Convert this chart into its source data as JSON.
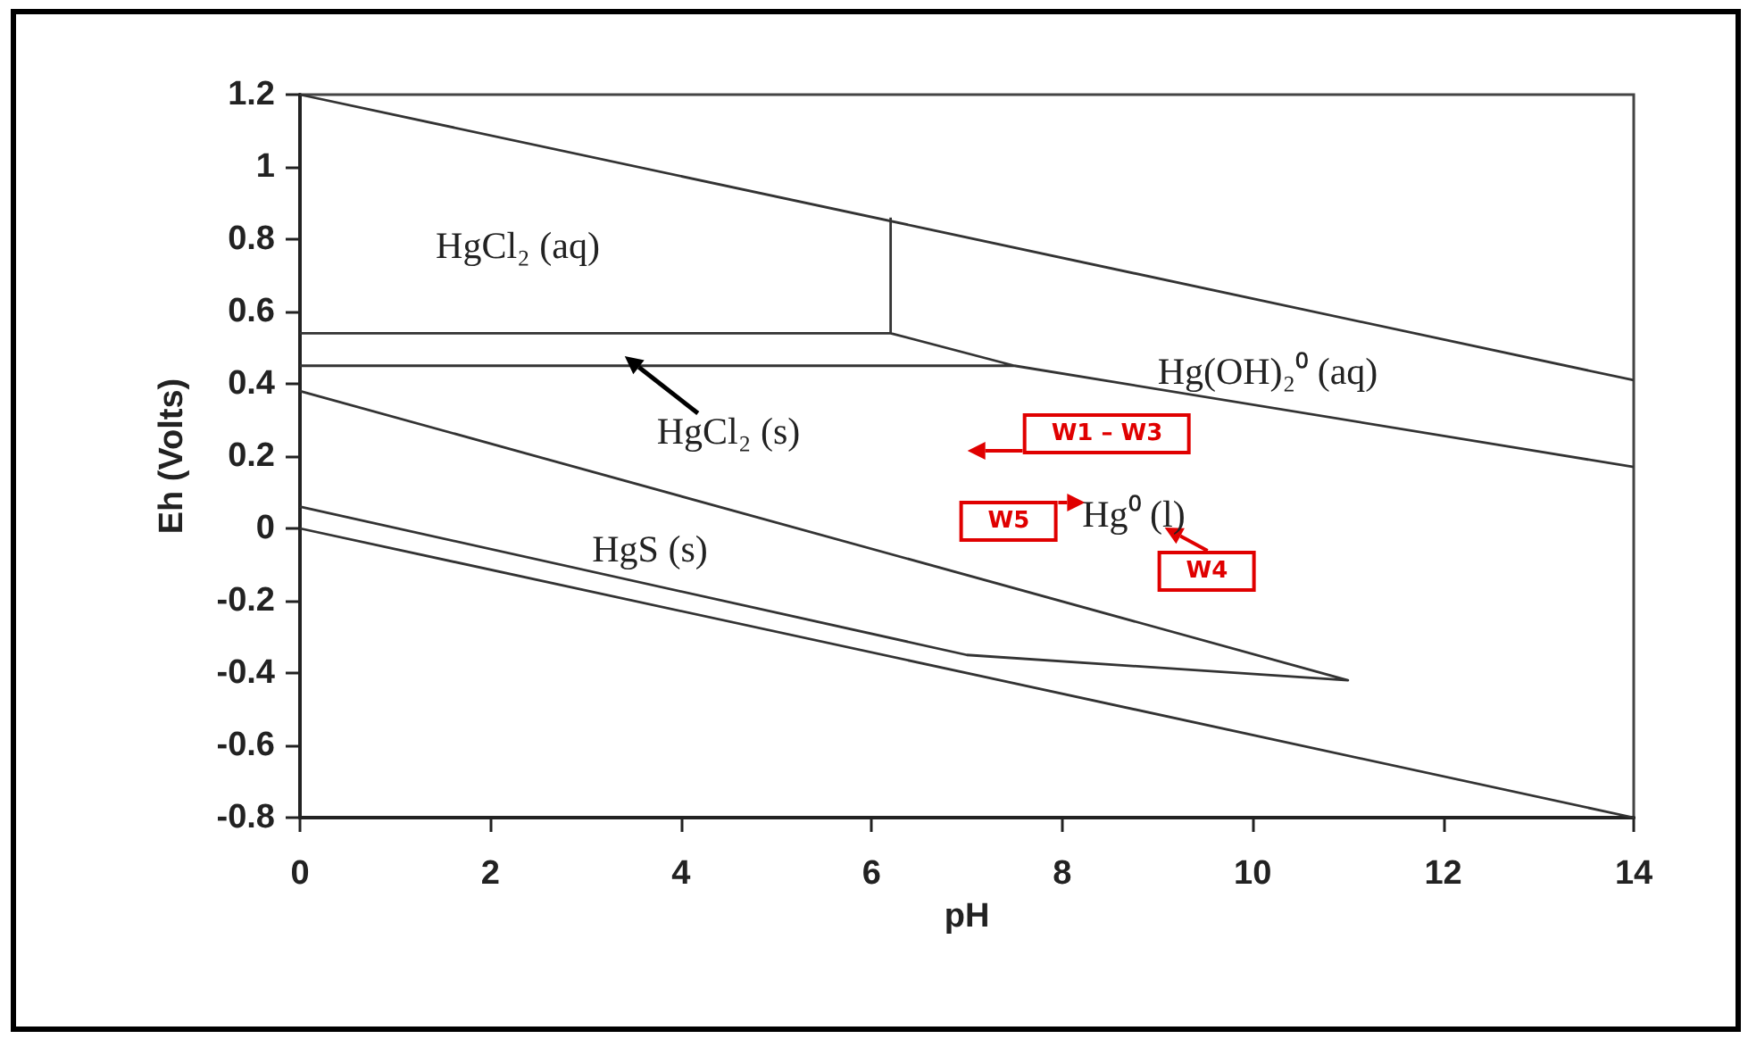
{
  "chart_data": {
    "type": "line",
    "xlabel": "pH",
    "ylabel": "Eh (Volts)",
    "xlim": [
      0,
      14
    ],
    "xticks": [
      0,
      2,
      4,
      6,
      8,
      10,
      12,
      14
    ],
    "ylim": [
      -0.8,
      1.2
    ],
    "yticks": [
      -0.8,
      -0.6,
      -0.4,
      -0.2,
      0,
      0.2,
      0.4,
      0.6,
      0.8,
      1,
      1.2
    ],
    "grid": false,
    "marker": "none",
    "line_style": "solid",
    "series": [
      {
        "color": "#333333",
        "x": [
          0,
          14
        ],
        "values": [
          1.2,
          0.41
        ]
      },
      {
        "color": "#333333",
        "x": [
          0,
          7.5,
          6.2,
          0,
          null,
          6.2,
          6.2,
          null,
          7.5,
          14
        ],
        "values": [
          0.45,
          0.45,
          0.54,
          0.54,
          null,
          0.54,
          0.86,
          null,
          0.45,
          0.17
        ]
      },
      {
        "color": "#333333",
        "x": [
          0,
          11,
          7,
          0
        ],
        "values": [
          0.38,
          -0.42,
          -0.35,
          0.06
        ]
      },
      {
        "color": "#333333",
        "x": [
          0,
          14
        ],
        "values": [
          0,
          -0.8
        ]
      }
    ],
    "annotations": [
      "HgCl₂ (aq)",
      "HgCl₂ (s)",
      "Hg(OH)₂⁰ (aq)",
      "HgS (s)",
      "Hg⁰ (l)",
      "W1 – W3",
      "W4",
      "W5"
    ]
  }
}
